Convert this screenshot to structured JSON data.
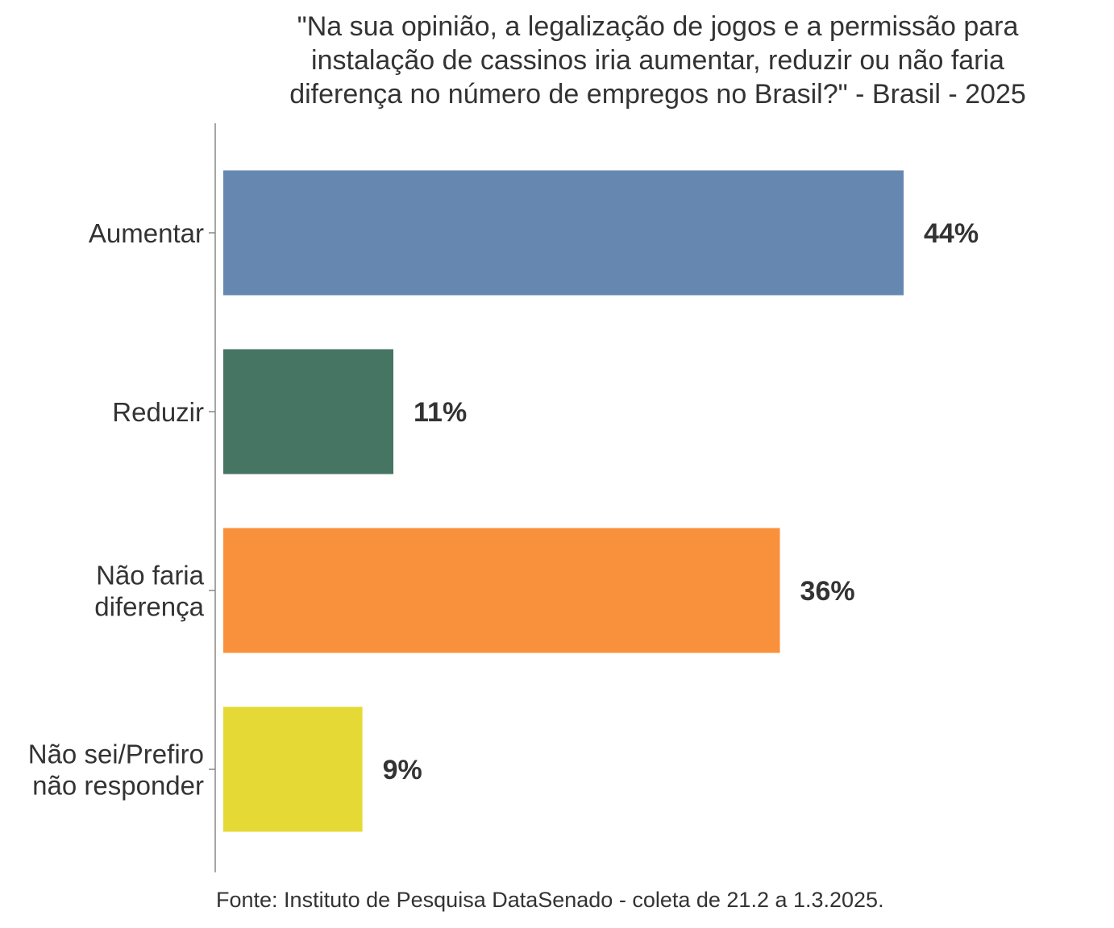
{
  "chart_data": {
    "type": "bar",
    "orientation": "horizontal",
    "title_lines": [
      "\"Na sua opinião, a legalização de jogos e a permissão para",
      "instalação de cassinos iria aumentar, reduzir ou não faria",
      "diferença no número de empregos no Brasil?\" - Brasil - 2025"
    ],
    "categories": [
      [
        "Aumentar"
      ],
      [
        "Reduzir"
      ],
      [
        "Não faria",
        "diferença"
      ],
      [
        "Não sei/Prefiro",
        "não responder"
      ]
    ],
    "values": [
      44,
      11,
      36,
      9
    ],
    "value_labels": [
      "44%",
      "11%",
      "36%",
      "9%"
    ],
    "colors": [
      "#6688b0",
      "#467563",
      "#f9913c",
      "#e5d935"
    ],
    "xlim": [
      0,
      44
    ],
    "grid": false,
    "legend": "none",
    "source": "Fonte: Instituto de Pesquisa DataSenado - coleta de 21.2 a 1.3.2025."
  }
}
